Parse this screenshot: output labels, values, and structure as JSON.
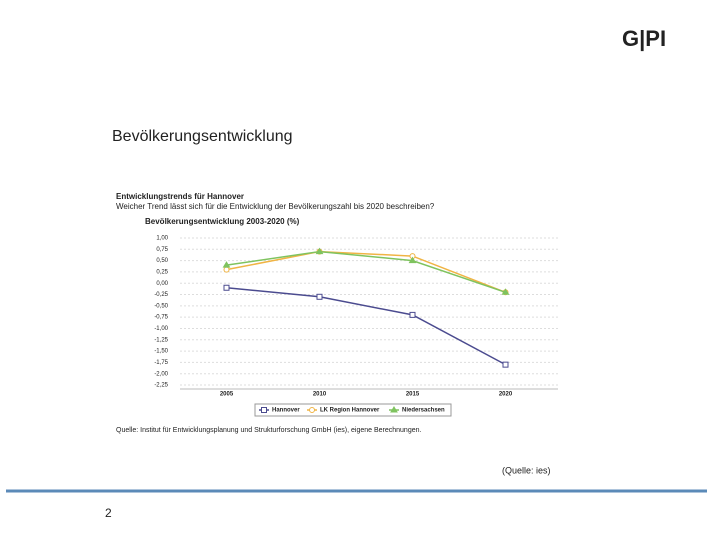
{
  "slide_title": "Bevölkerungsentwicklung",
  "logo": "G|PI",
  "footer_source": "(Quelle: ies)",
  "page_number": "2",
  "chart_data": {
    "type": "line",
    "header": "Entwicklungstrends für Hannover",
    "question": "Weicher Trend lässt sich für die Entwicklung der Bevölkerungszahl bis 2020 beschreiben?",
    "title": "Bevölkerungsentwicklung 2003-2020 (%)",
    "source": "Quelle: Institut für Entwicklungsplanung und Strukturforschung GmbH (ies), eigene Berechnungen.",
    "categories": [
      "2005",
      "2010",
      "2015",
      "2020"
    ],
    "series": [
      {
        "name": "Hannover",
        "color": "#4b4b8f",
        "marker": "square",
        "values": [
          -0.1,
          -0.3,
          -0.7,
          -1.8
        ]
      },
      {
        "name": "LK Region Hannover",
        "color": "#f0b444",
        "marker": "circle",
        "values": [
          0.3,
          0.7,
          0.6,
          -0.2
        ]
      },
      {
        "name": "Niedersachsen",
        "color": "#7fc35f",
        "marker": "triangle",
        "values": [
          0.4,
          0.7,
          0.5,
          -0.2
        ]
      }
    ],
    "ylim": [
      -2.25,
      1.0
    ],
    "yticks": [
      {
        "value": 1.0,
        "label": "1,00"
      },
      {
        "value": 0.75,
        "label": "0,75"
      },
      {
        "value": 0.5,
        "label": "0,50"
      },
      {
        "value": 0.25,
        "label": "0,25"
      },
      {
        "value": 0,
        "label": "0,00"
      },
      {
        "value": -0.25,
        "label": "-0,25"
      },
      {
        "value": -0.5,
        "label": "-0,50"
      },
      {
        "value": -0.75,
        "label": "-0,75"
      },
      {
        "value": -1.0,
        "label": "-1,00"
      },
      {
        "value": -1.25,
        "label": "-1,25"
      },
      {
        "value": -1.5,
        "label": "-1,50"
      },
      {
        "value": -1.75,
        "label": "-1,75"
      },
      {
        "value": -2.0,
        "label": "-2,00"
      },
      {
        "value": -2.25,
        "label": "-2,25"
      }
    ],
    "grid": true,
    "legend": "bottom"
  }
}
